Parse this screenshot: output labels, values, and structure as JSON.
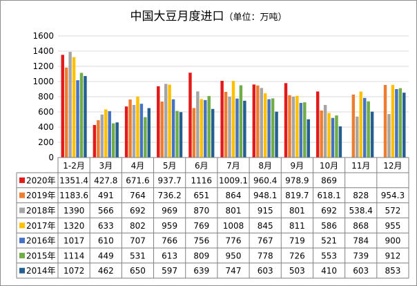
{
  "chart_data": {
    "type": "bar",
    "title": "中国大豆月度进口",
    "unit_note": "（单位：万吨）",
    "categories": [
      "1-2月",
      "3月",
      "4月",
      "5月",
      "6月",
      "7月",
      "8月",
      "9月",
      "10月",
      "11月",
      "12月"
    ],
    "ylim": [
      0,
      1600
    ],
    "yticks": [
      "0",
      "200",
      "400",
      "600",
      "800",
      "1000",
      "1200",
      "1400",
      "1600"
    ],
    "grid": true,
    "legend": "table-left",
    "series": [
      {
        "name": "2020年",
        "color": "#e21a1a",
        "values": [
          1351.4,
          427.8,
          671.6,
          937.7,
          1116,
          1009.1,
          960.4,
          978.9,
          869,
          null,
          null
        ],
        "labels": [
          "1351.4",
          "427.8",
          "671.6",
          "937.7",
          "1116",
          "1009.1",
          "960.4",
          "978.9",
          "869",
          "",
          ""
        ]
      },
      {
        "name": "2019年",
        "color": "#ed7d31",
        "values": [
          1183.6,
          491,
          764,
          736.2,
          651,
          864,
          948.1,
          819.7,
          618.1,
          828,
          954.3
        ],
        "labels": [
          "1183.6",
          "491",
          "764",
          "736.2",
          "651",
          "864",
          "948.1",
          "819.7",
          "618.1",
          "828",
          "954.3"
        ]
      },
      {
        "name": "2018年",
        "color": "#a5a5a5",
        "values": [
          1390,
          566,
          692,
          969,
          870,
          801,
          915,
          801,
          692,
          538.4,
          572
        ],
        "labels": [
          "1390",
          "566",
          "692",
          "969",
          "870",
          "801",
          "915",
          "801",
          "692",
          "538.4",
          "572"
        ]
      },
      {
        "name": "2017年",
        "color": "#ffc000",
        "values": [
          1320,
          633,
          802,
          959,
          769,
          1008,
          845,
          811,
          586,
          868,
          955
        ],
        "labels": [
          "1320",
          "633",
          "802",
          "959",
          "769",
          "1008",
          "845",
          "811",
          "586",
          "868",
          "955"
        ]
      },
      {
        "name": "2016年",
        "color": "#4472c4",
        "values": [
          1017,
          610,
          707,
          766,
          756,
          776,
          767,
          719,
          521,
          784,
          900
        ],
        "labels": [
          "1017",
          "610",
          "707",
          "766",
          "756",
          "776",
          "767",
          "719",
          "521",
          "784",
          "900"
        ]
      },
      {
        "name": "2015年",
        "color": "#70ad47",
        "values": [
          1114,
          449,
          531,
          613,
          809,
          950,
          778,
          726,
          553,
          739,
          912
        ],
        "labels": [
          "1114",
          "449",
          "531",
          "613",
          "809",
          "950",
          "778",
          "726",
          "553",
          "739",
          "912"
        ]
      },
      {
        "name": "2014年",
        "color": "#255e91",
        "values": [
          1072,
          462,
          650,
          597,
          639,
          747,
          603,
          503,
          410,
          603,
          853
        ],
        "labels": [
          "1072",
          "462",
          "650",
          "597",
          "639",
          "747",
          "603",
          "503",
          "410",
          "603",
          "853"
        ]
      }
    ]
  }
}
